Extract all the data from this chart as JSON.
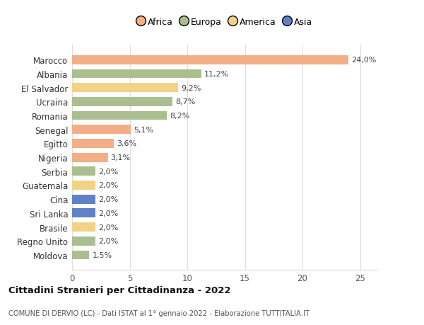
{
  "countries": [
    "Marocco",
    "Albania",
    "El Salvador",
    "Ucraina",
    "Romania",
    "Senegal",
    "Egitto",
    "Nigeria",
    "Serbia",
    "Guatemala",
    "Cina",
    "Sri Lanka",
    "Brasile",
    "Regno Unito",
    "Moldova"
  ],
  "values": [
    24.0,
    11.2,
    9.2,
    8.7,
    8.2,
    5.1,
    3.6,
    3.1,
    2.0,
    2.0,
    2.0,
    2.0,
    2.0,
    2.0,
    1.5
  ],
  "labels": [
    "24,0%",
    "11,2%",
    "9,2%",
    "8,7%",
    "8,2%",
    "5,1%",
    "3,6%",
    "3,1%",
    "2,0%",
    "2,0%",
    "2,0%",
    "2,0%",
    "2,0%",
    "2,0%",
    "1,5%"
  ],
  "continents": [
    "Africa",
    "Europa",
    "America",
    "Europa",
    "Europa",
    "Africa",
    "Africa",
    "Africa",
    "Europa",
    "America",
    "Asia",
    "Asia",
    "America",
    "Europa",
    "Europa"
  ],
  "continent_colors": {
    "Africa": "#F2AF87",
    "Europa": "#ABBE90",
    "America": "#F2D285",
    "Asia": "#6080C8"
  },
  "legend_items": [
    "Africa",
    "Europa",
    "America",
    "Asia"
  ],
  "legend_colors": [
    "#F2AF87",
    "#ABBE90",
    "#F2D285",
    "#6080C8"
  ],
  "title": "Cittadini Stranieri per Cittadinanza - 2022",
  "subtitle": "COMUNE DI DERVIO (LC) - Dati ISTAT al 1° gennaio 2022 - Elaborazione TUTTITALIA.IT",
  "xlim": [
    0,
    26.5
  ],
  "xticks": [
    0,
    5,
    10,
    15,
    20,
    25
  ],
  "background_color": "#ffffff",
  "grid_color": "#dddddd",
  "bar_height": 0.65,
  "label_fontsize": 8.0,
  "ytick_fontsize": 8.5,
  "xtick_fontsize": 8.5
}
